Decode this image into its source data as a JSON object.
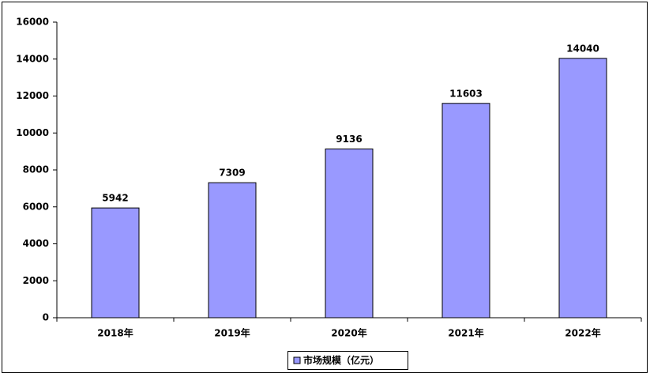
{
  "chart_data": {
    "type": "bar",
    "categories": [
      "2018年",
      "2019年",
      "2020年",
      "2021年",
      "2022年"
    ],
    "series": [
      {
        "name": "市场规模（亿元）",
        "color": "#9999ff",
        "values": [
          5942,
          7309,
          9136,
          11603,
          14040
        ]
      }
    ],
    "ylim": [
      0,
      16000
    ],
    "yticks": [
      0,
      2000,
      4000,
      6000,
      8000,
      10000,
      12000,
      14000,
      16000
    ],
    "grid": false,
    "legend": "bottom",
    "data_labels": true
  }
}
